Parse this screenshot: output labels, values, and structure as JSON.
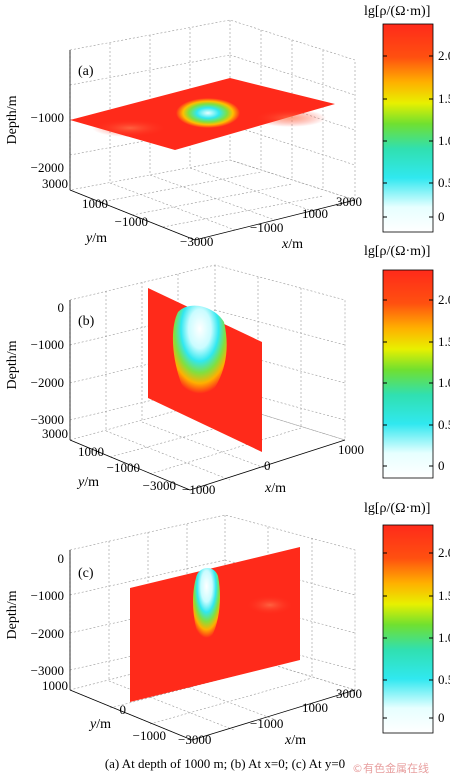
{
  "chart_data": [
    {
      "type": "heatmap",
      "panel_label": "(a)",
      "description_caption": "(a) At depth of 1000 m",
      "zlabel": "Depth/m",
      "xlabel": "x/m",
      "ylabel": "y/m",
      "zticks": [
        "−1000",
        "−2000"
      ],
      "xticks": [
        "−3000",
        "−1000",
        "1000",
        "3000"
      ],
      "yticks": [
        "3000",
        "1000",
        "−1000"
      ],
      "colorbar": {
        "title": "lg[ρ/(Ω·m)]",
        "ticks": [
          "2.0",
          "1.5",
          "1.0",
          "0.5",
          "0"
        ],
        "range": [
          -0.2,
          2.4
        ]
      }
    },
    {
      "type": "heatmap",
      "panel_label": "(b)",
      "zlabel": "Depth/m",
      "xlabel": "x/m",
      "ylabel": "y/m",
      "zticks": [
        "0",
        "−1000",
        "−2000",
        "−3000"
      ],
      "xticks": [
        "−1000",
        "0",
        "1000"
      ],
      "yticks": [
        "3000",
        "1000",
        "−1000",
        "−3000"
      ],
      "colorbar": {
        "title": "lg[ρ/(Ω·m)]",
        "ticks": [
          "2.0",
          "1.5",
          "1.0",
          "0.5",
          "0"
        ],
        "range": [
          -0.2,
          2.4
        ]
      }
    },
    {
      "type": "heatmap",
      "panel_label": "(c)",
      "zlabel": "Depth/m",
      "xlabel": "x/m",
      "ylabel": "y/m",
      "zticks": [
        "0",
        "−1000",
        "−2000",
        "−3000"
      ],
      "xticks": [
        "−3000",
        "−1000",
        "1000",
        "3000"
      ],
      "yticks": [
        "1000",
        "0",
        "−1000"
      ],
      "colorbar": {
        "title": "lg[ρ/(Ω·m)]",
        "ticks": [
          "2.0",
          "1.5",
          "1.0",
          "0.5",
          "0"
        ],
        "range": [
          -0.2,
          2.4
        ]
      }
    }
  ],
  "caption": "(a) At depth of 1000 m; (b) At  x=0; (c) At y=0",
  "watermark": "©有色金属在线",
  "colors": {
    "background": "#ffffff",
    "high": "#ff2a1a",
    "low": "#ffffff"
  }
}
